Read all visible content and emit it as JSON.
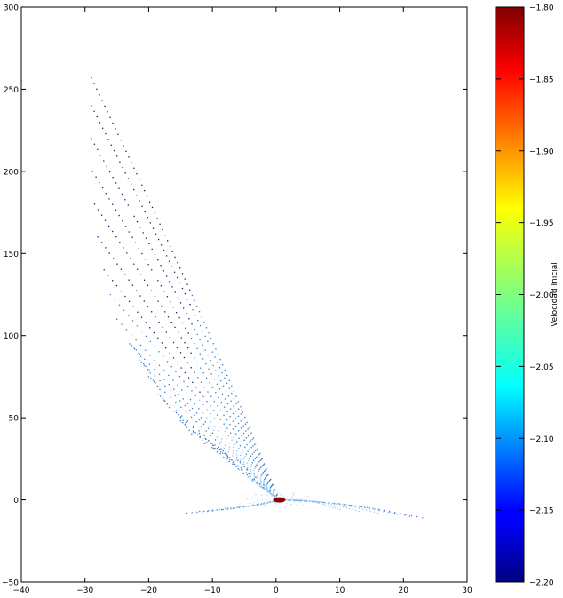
{
  "chart_data": {
    "type": "scatter",
    "title": "",
    "xlabel": "",
    "ylabel": "",
    "xlim": [
      -40,
      30
    ],
    "ylim": [
      -50,
      300
    ],
    "x_ticks": [
      -40,
      -30,
      -20,
      -10,
      0,
      10,
      20,
      30
    ],
    "y_ticks": [
      -50,
      0,
      50,
      100,
      150,
      200,
      250,
      300
    ],
    "x_tick_labels": [
      "−40",
      "−30",
      "−20",
      "−10",
      "0",
      "10",
      "20",
      "30"
    ],
    "y_tick_labels": [
      "−50",
      "0",
      "50",
      "100",
      "150",
      "200",
      "250",
      "300"
    ],
    "grid": false,
    "colormap": "jet",
    "colorbar": {
      "label": "Velocidad Inicial",
      "range": [
        -2.2,
        -1.8
      ],
      "ticks": [
        -1.8,
        -1.85,
        -1.9,
        -1.95,
        -2.0,
        -2.05,
        -2.1,
        -2.15,
        -2.2
      ],
      "tick_labels": [
        "−1.80",
        "−1.85",
        "−1.90",
        "−1.95",
        "−2.00",
        "−2.05",
        "−2.10",
        "−2.15",
        "−2.20"
      ]
    },
    "point_colors": {
      "dark": "#0a2a66",
      "mid": "#3d7fcc",
      "light": "#8fc3f0",
      "lightest": "#c4e0f7"
    },
    "central_marker_color": "#8b0000",
    "series": [
      {
        "description": "upper-left fan of trajectories",
        "tips": [
          {
            "x": -29,
            "y": 257
          },
          {
            "x": -29,
            "y": 240
          },
          {
            "x": -29,
            "y": 220
          },
          {
            "x": -28.8,
            "y": 200
          },
          {
            "x": -28.5,
            "y": 180
          },
          {
            "x": -28,
            "y": 160
          },
          {
            "x": -27,
            "y": 140
          },
          {
            "x": -26,
            "y": 125
          },
          {
            "x": -25,
            "y": 110
          },
          {
            "x": -23,
            "y": 95
          },
          {
            "x": -21.5,
            "y": 85
          },
          {
            "x": -20,
            "y": 75
          },
          {
            "x": -18.5,
            "y": 64
          },
          {
            "x": -16,
            "y": 54
          },
          {
            "x": -15,
            "y": 48
          },
          {
            "x": -13,
            "y": 42
          },
          {
            "x": -11,
            "y": 37
          },
          {
            "x": -9,
            "y": 32
          },
          {
            "x": -8,
            "y": 28
          },
          {
            "x": -6,
            "y": 24
          }
        ]
      },
      {
        "description": "lower-right wing",
        "tips": [
          {
            "x": 23,
            "y": -11
          },
          {
            "x": 21,
            "y": -10
          },
          {
            "x": 19,
            "y": -9
          },
          {
            "x": 16,
            "y": -8
          },
          {
            "x": 13,
            "y": -7
          },
          {
            "x": 10,
            "y": -6
          }
        ]
      },
      {
        "description": "lower-left wing",
        "tips": [
          {
            "x": -14,
            "y": -8
          },
          {
            "x": -12,
            "y": -7
          },
          {
            "x": -10,
            "y": -6
          },
          {
            "x": -8,
            "y": -5
          },
          {
            "x": -6,
            "y": -4
          }
        ]
      }
    ],
    "origin": {
      "x": 0.5,
      "y": 0
    }
  }
}
